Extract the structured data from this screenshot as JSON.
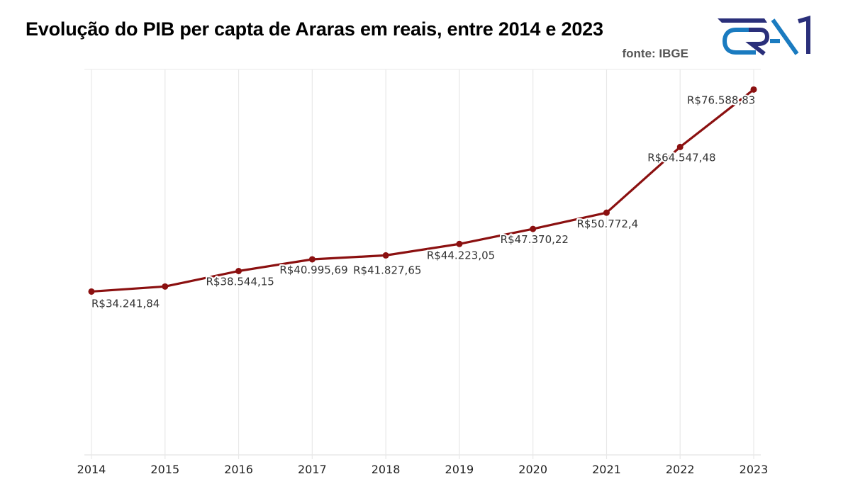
{
  "header": {
    "title": "Evolução do PIB per capta de Araras em reais, entre 2014 e 2023",
    "source": "fonte: IBGE",
    "logo_name": "era1-logo"
  },
  "colors": {
    "line": "#8b1010",
    "grid": "#e8e8e8",
    "logo_dark": "#2a2f7a",
    "logo_light": "#1a7bc0"
  },
  "chart_data": {
    "type": "line",
    "title": "Evolução do PIB per capta de Araras em reais, entre 2014 e 2023",
    "xlabel": "",
    "ylabel": "",
    "x": [
      "2014",
      "2015",
      "2016",
      "2017",
      "2018",
      "2019",
      "2020",
      "2021",
      "2022",
      "2023"
    ],
    "series": [
      {
        "name": "PIB per capta",
        "values": [
          34241.84,
          35300,
          38544.15,
          40995.69,
          41827.65,
          44223.05,
          47370.22,
          50772.4,
          64547.48,
          76588.83
        ],
        "labels": [
          "R$34.241,84",
          "",
          "R$38.544,15",
          "R$40.995,69",
          "R$41.827,65",
          "R$44.223,05",
          "R$47.370,22",
          "R$50.772,4",
          "R$64.547,48",
          "R$76.588,83"
        ]
      }
    ],
    "ylim": [
      0,
      80800
    ],
    "grid": "vertical",
    "legend": "none",
    "y_axis_visible": false
  }
}
